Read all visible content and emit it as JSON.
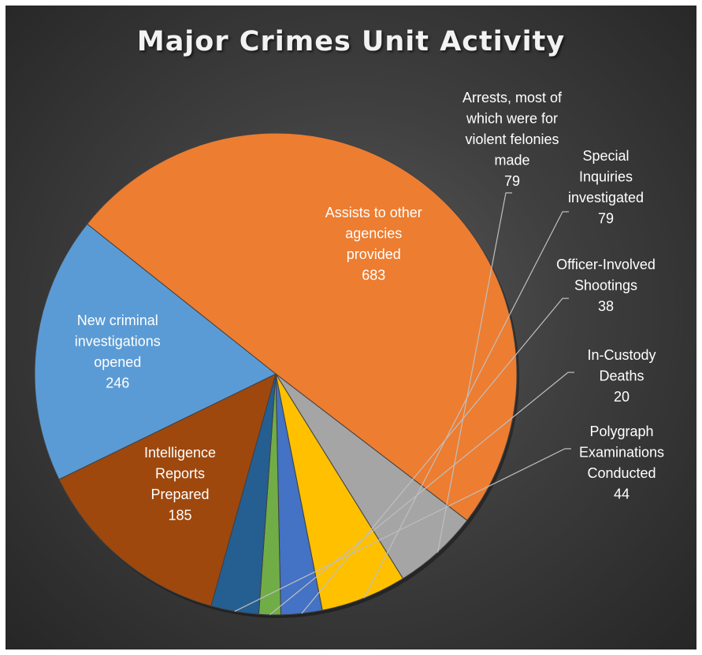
{
  "chart_data": {
    "type": "pie",
    "title": "Major Crimes Unit Activity",
    "slices": [
      {
        "label": [
          "Assists to other",
          "agencies",
          "provided"
        ],
        "value": 683,
        "color": "#ED7D31",
        "label_inside": true
      },
      {
        "label": [
          "Arrests, most of",
          "which were for",
          "violent felonies",
          "made"
        ],
        "value": 79,
        "color": "#A5A5A5",
        "label_inside": false
      },
      {
        "label": [
          "Special",
          "Inquiries",
          "investigated"
        ],
        "value": 79,
        "color": "#FFC000",
        "label_inside": false
      },
      {
        "label": [
          "Officer-Involved",
          "Shootings"
        ],
        "value": 38,
        "color": "#4472C4",
        "label_inside": false
      },
      {
        "label": [
          "In-Custody",
          "Deaths"
        ],
        "value": 20,
        "color": "#70AD47",
        "label_inside": false
      },
      {
        "label": [
          "Polygraph",
          "Examinations",
          "Conducted"
        ],
        "value": 44,
        "color": "#255E91",
        "label_inside": false
      },
      {
        "label": [
          "Intelligence",
          "Reports",
          "Prepared"
        ],
        "value": 185,
        "color": "#9E480E",
        "label_inside": true
      },
      {
        "label": [
          "New criminal",
          "investigations",
          "opened"
        ],
        "value": 246,
        "color": "#5B9BD5",
        "label_inside": true
      }
    ],
    "label_color": "#ffffff"
  }
}
